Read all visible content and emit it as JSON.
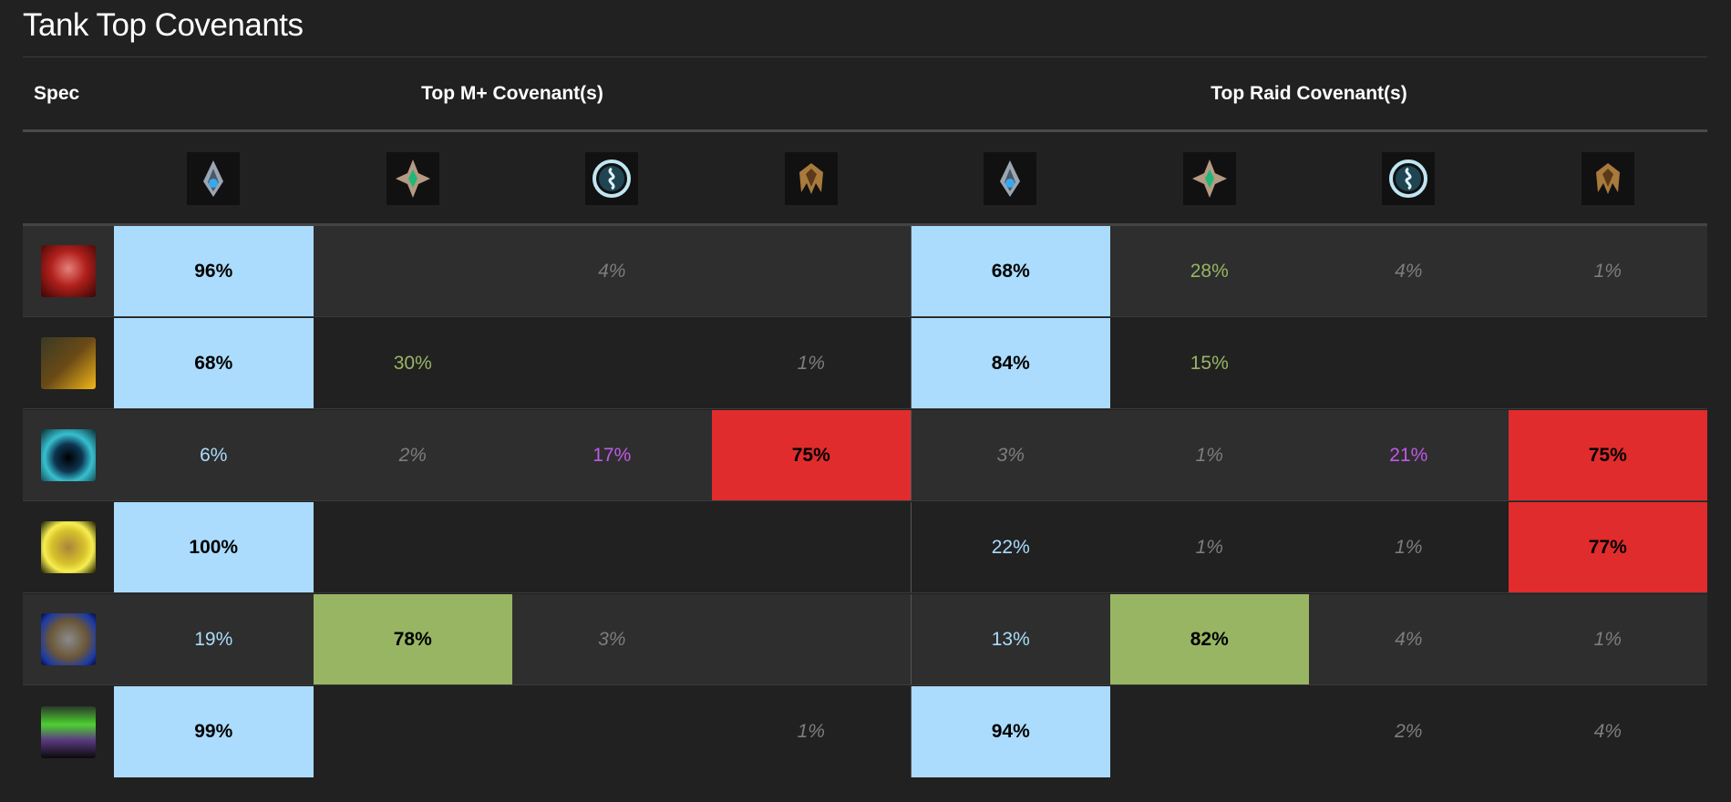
{
  "title": "Tank Top Covenants",
  "headers": {
    "spec": "Spec",
    "mplus": "Top M+ Covenant(s)",
    "raid": "Top Raid Covenant(s)"
  },
  "covenants": [
    {
      "icon": "kyrian-icon",
      "color": "#abdcfd"
    },
    {
      "icon": "necrolord-icon",
      "color": "#98b564"
    },
    {
      "icon": "night-fae-icon",
      "color": "#c05ae6"
    },
    {
      "icon": "venthyr-icon",
      "color": "#e02c2c"
    }
  ],
  "rows": [
    {
      "spec_icon": "blood-death-knight-icon",
      "mplus": [
        {
          "v": "96%",
          "s": "top"
        },
        {
          "v": "",
          "s": ""
        },
        {
          "v": "4%",
          "s": "low"
        },
        {
          "v": "",
          "s": ""
        }
      ],
      "raid": [
        {
          "v": "68%",
          "s": "top"
        },
        {
          "v": "28%",
          "s": "mid"
        },
        {
          "v": "4%",
          "s": "low"
        },
        {
          "v": "1%",
          "s": "low"
        }
      ]
    },
    {
      "spec_icon": "brewmaster-monk-icon",
      "mplus": [
        {
          "v": "68%",
          "s": "top"
        },
        {
          "v": "30%",
          "s": "mid"
        },
        {
          "v": "",
          "s": ""
        },
        {
          "v": "1%",
          "s": "low"
        }
      ],
      "raid": [
        {
          "v": "84%",
          "s": "top"
        },
        {
          "v": "15%",
          "s": "mid"
        },
        {
          "v": "",
          "s": ""
        },
        {
          "v": "",
          "s": ""
        }
      ]
    },
    {
      "spec_icon": "guardian-druid-icon",
      "mplus": [
        {
          "v": "6%",
          "s": "mid"
        },
        {
          "v": "2%",
          "s": "low"
        },
        {
          "v": "17%",
          "s": "mid"
        },
        {
          "v": "75%",
          "s": "top"
        }
      ],
      "raid": [
        {
          "v": "3%",
          "s": "low"
        },
        {
          "v": "1%",
          "s": "low"
        },
        {
          "v": "21%",
          "s": "mid"
        },
        {
          "v": "75%",
          "s": "top"
        }
      ]
    },
    {
      "spec_icon": "protection-paladin-icon",
      "mplus": [
        {
          "v": "100%",
          "s": "top"
        },
        {
          "v": "",
          "s": ""
        },
        {
          "v": "",
          "s": ""
        },
        {
          "v": "",
          "s": ""
        }
      ],
      "raid": [
        {
          "v": "22%",
          "s": "mid"
        },
        {
          "v": "1%",
          "s": "low"
        },
        {
          "v": "1%",
          "s": "low"
        },
        {
          "v": "77%",
          "s": "top"
        }
      ]
    },
    {
      "spec_icon": "protection-warrior-icon",
      "mplus": [
        {
          "v": "19%",
          "s": "mid"
        },
        {
          "v": "78%",
          "s": "top"
        },
        {
          "v": "3%",
          "s": "low"
        },
        {
          "v": "",
          "s": ""
        }
      ],
      "raid": [
        {
          "v": "13%",
          "s": "mid"
        },
        {
          "v": "82%",
          "s": "top"
        },
        {
          "v": "4%",
          "s": "low"
        },
        {
          "v": "1%",
          "s": "low"
        }
      ]
    },
    {
      "spec_icon": "vengeance-demon-hunter-icon",
      "mplus": [
        {
          "v": "99%",
          "s": "top"
        },
        {
          "v": "",
          "s": ""
        },
        {
          "v": "",
          "s": ""
        },
        {
          "v": "1%",
          "s": "low"
        }
      ],
      "raid": [
        {
          "v": "94%",
          "s": "top"
        },
        {
          "v": "",
          "s": ""
        },
        {
          "v": "2%",
          "s": "low"
        },
        {
          "v": "4%",
          "s": "low"
        }
      ]
    }
  ]
}
